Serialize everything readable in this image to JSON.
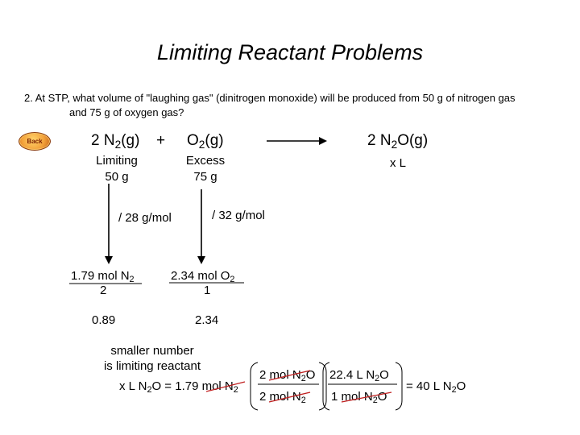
{
  "title": "Limiting Reactant Problems",
  "question": {
    "line1": "2.  At STP, what volume of \"laughing gas\" (dinitrogen monoxide) will be produced from 50 g of nitrogen gas",
    "line2": "and 75 g of oxygen gas?"
  },
  "back_button": {
    "label": "Back",
    "color": "#f3a23a"
  },
  "equation": {
    "coef_n2": "2 N",
    "n2_sub": "2",
    "n2_state": "(g)",
    "plus": "+",
    "o2": "O",
    "o2_sub": "2",
    "o2_state": "(g)",
    "coef_n2o": "2 N",
    "n2o_sub": "2",
    "n2o_state": "O(g)"
  },
  "labels": {
    "limiting": "Limiting",
    "n2_mass": "50 g",
    "excess": "Excess",
    "o2_mass": "75 g",
    "product": "x L"
  },
  "divisions": {
    "n2": "/ 28 g/mol",
    "o2": "/ 32 g/mol"
  },
  "moles": {
    "n2_num": "1.79 mol N",
    "n2_num_sub": "2",
    "n2_den": "2",
    "o2_num": "2.34 mol O",
    "o2_num_sub": "2",
    "o2_den": "1",
    "n2_result": "0.89",
    "o2_result": "2.34"
  },
  "note": {
    "line1": "smaller number",
    "line2": "is limiting reactant"
  },
  "final": {
    "lhs_a": "x L N",
    "lhs_sub": "2",
    "lhs_b": "O = 1.79 ",
    "lhs_c": "mol N",
    "lhs_c_sub": "2",
    "f1_num_a": "2 ",
    "f1_num_b": "mol N",
    "f1_num_sub": "2",
    "f1_num_c": "O",
    "f1_den_a": "2 ",
    "f1_den_b": "mol N",
    "f1_den_sub": "2",
    "f2_num_a": "22.4 L N",
    "f2_num_sub": "2",
    "f2_num_b": "O",
    "f2_den_a": "1 ",
    "f2_den_b": "mol N",
    "f2_den_sub": "2",
    "f2_den_c": "O",
    "result_a": "= 40 L N",
    "result_sub": "2",
    "result_b": "O"
  }
}
